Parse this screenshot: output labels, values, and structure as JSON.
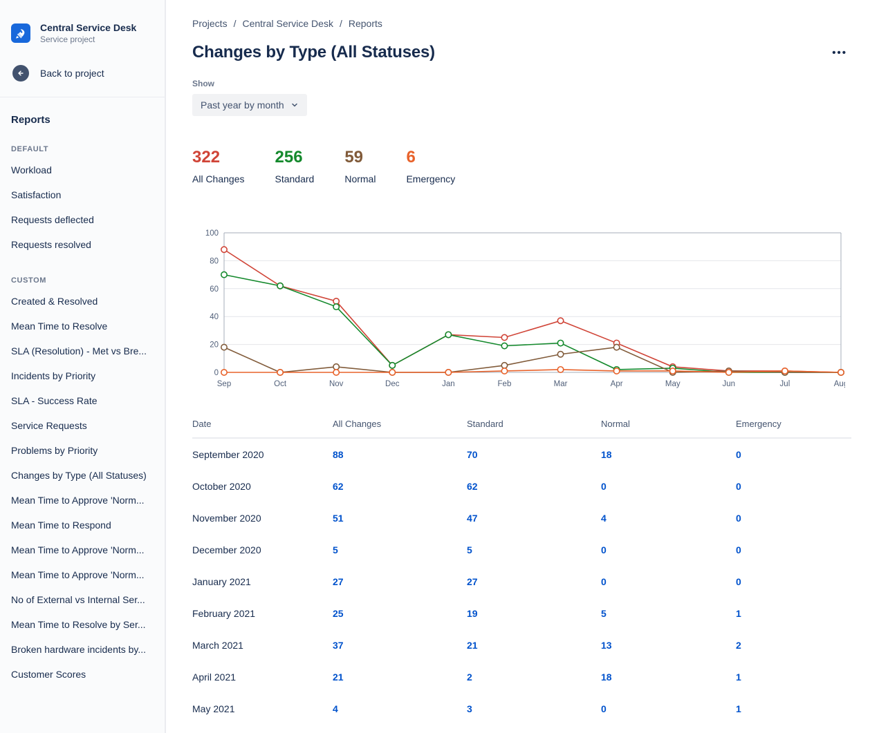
{
  "sidebar": {
    "project": {
      "name": "Central Service Desk",
      "type": "Service project"
    },
    "back_label": "Back to project",
    "reports_label": "Reports",
    "sections": [
      {
        "title": "DEFAULT",
        "items": [
          "Workload",
          "Satisfaction",
          "Requests deflected",
          "Requests resolved"
        ]
      },
      {
        "title": "CUSTOM",
        "items": [
          "Created & Resolved",
          "Mean Time to Resolve",
          "SLA (Resolution) - Met vs Bre...",
          "Incidents by Priority",
          "SLA - Success Rate",
          "Service Requests",
          "Problems by Priority",
          "Changes by Type (All Statuses)",
          "Mean Time to Approve 'Norm...",
          "Mean Time to Respond",
          "Mean Time to Approve 'Norm...",
          "Mean Time to Approve 'Norm...",
          "No of External vs Internal Ser...",
          "Mean Time to Resolve by Ser...",
          "Broken hardware incidents by...",
          "Customer Scores"
        ]
      }
    ]
  },
  "breadcrumb": [
    "Projects",
    "Central Service Desk",
    "Reports"
  ],
  "page": {
    "title": "Changes by Type (All Statuses)",
    "show_label": "Show",
    "filter_value": "Past year by month",
    "more_icon": "•••"
  },
  "summary": [
    {
      "value": "322",
      "label": "All Changes",
      "color": "#d04437"
    },
    {
      "value": "256",
      "label": "Standard",
      "color": "#14892c"
    },
    {
      "value": "59",
      "label": "Normal",
      "color": "#815b3a"
    },
    {
      "value": "6",
      "label": "Emergency",
      "color": "#e8622a"
    }
  ],
  "chart_data": {
    "type": "line",
    "title": "Changes by Type (All Statuses)",
    "x": [
      "Sep",
      "Oct",
      "Nov",
      "Dec",
      "Jan",
      "Feb",
      "Mar",
      "Apr",
      "May",
      "Jun",
      "Jul",
      "Aug"
    ],
    "ylim": [
      0,
      100
    ],
    "yticks": [
      0,
      20,
      40,
      60,
      80,
      100
    ],
    "grid": true,
    "legend": "none",
    "series": [
      {
        "name": "All Changes",
        "color": "#d04437",
        "values": [
          88,
          62,
          51,
          5,
          27,
          25,
          37,
          21,
          4,
          1,
          1,
          0
        ]
      },
      {
        "name": "Standard",
        "color": "#14892c",
        "values": [
          70,
          62,
          47,
          5,
          27,
          19,
          21,
          2,
          3,
          0,
          0,
          0
        ]
      },
      {
        "name": "Normal",
        "color": "#815b3a",
        "values": [
          18,
          0,
          4,
          0,
          0,
          5,
          13,
          18,
          0,
          1,
          0,
          0
        ]
      },
      {
        "name": "Emergency",
        "color": "#e8622a",
        "values": [
          0,
          0,
          0,
          0,
          0,
          1,
          2,
          1,
          1,
          0,
          1,
          0
        ]
      }
    ]
  },
  "table": {
    "headers": [
      "Date",
      "All Changes",
      "Standard",
      "Normal",
      "Emergency"
    ],
    "rows": [
      {
        "date": "September 2020",
        "values": [
          88,
          70,
          18,
          0
        ]
      },
      {
        "date": "October 2020",
        "values": [
          62,
          62,
          0,
          0
        ]
      },
      {
        "date": "November 2020",
        "values": [
          51,
          47,
          4,
          0
        ]
      },
      {
        "date": "December 2020",
        "values": [
          5,
          5,
          0,
          0
        ]
      },
      {
        "date": "January 2021",
        "values": [
          27,
          27,
          0,
          0
        ]
      },
      {
        "date": "February 2021",
        "values": [
          25,
          19,
          5,
          1
        ]
      },
      {
        "date": "March 2021",
        "values": [
          37,
          21,
          13,
          2
        ]
      },
      {
        "date": "April 2021",
        "values": [
          21,
          2,
          18,
          1
        ]
      },
      {
        "date": "May 2021",
        "values": [
          4,
          3,
          0,
          1
        ]
      }
    ]
  }
}
